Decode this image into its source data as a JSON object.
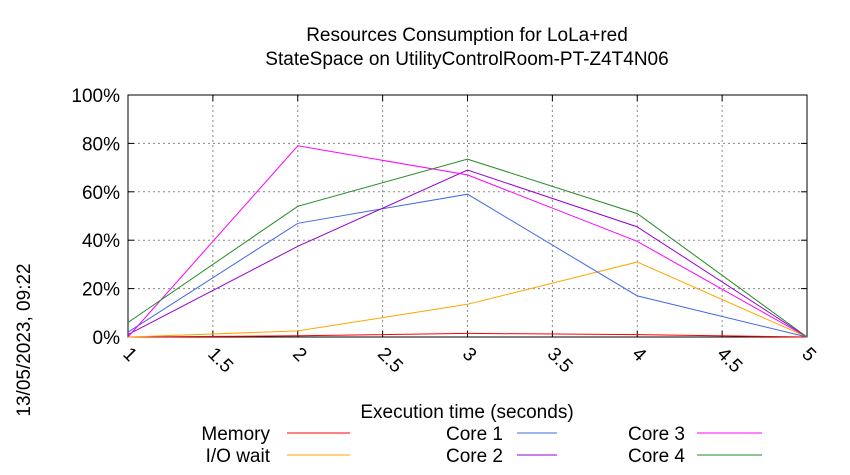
{
  "chart_data": {
    "type": "line",
    "title_line1": "Resources Consumption for LoLa+red",
    "title_line2": "StateSpace on UtilityControlRoom-PT-Z4T4N06",
    "xlabel": "Execution time (seconds)",
    "ylabel": "",
    "side_label": "13/05/2023, 09:22",
    "xlim": [
      1,
      5
    ],
    "ylim": [
      0,
      100
    ],
    "x_ticks": [
      "1",
      "1.5",
      "2",
      "2.5",
      "3",
      "3.5",
      "4",
      "4.5",
      "5"
    ],
    "x_tick_values": [
      1,
      1.5,
      2,
      2.5,
      3,
      3.5,
      4,
      4.5,
      5
    ],
    "y_ticks": [
      "0%",
      "20%",
      "40%",
      "60%",
      "80%",
      "100%"
    ],
    "y_tick_values": [
      0,
      20,
      40,
      60,
      80,
      100
    ],
    "grid": true,
    "legend_position": "bottom",
    "x": [
      1,
      2,
      3,
      4,
      5
    ],
    "series": [
      {
        "name": "Memory",
        "color": "#ff0000",
        "values": [
          0,
          0.5,
          1.5,
          1,
          0
        ]
      },
      {
        "name": "I/O wait",
        "color": "#ffa500",
        "values": [
          0,
          2.5,
          13.5,
          31,
          0
        ]
      },
      {
        "name": "Core 1",
        "color": "#4169e1",
        "values": [
          2,
          47,
          59,
          17,
          0
        ]
      },
      {
        "name": "Core 2",
        "color": "#9400d3",
        "values": [
          1,
          37.5,
          69,
          45.5,
          0
        ]
      },
      {
        "name": "Core 3",
        "color": "#ff00ff",
        "values": [
          0,
          79,
          67,
          39.5,
          0
        ]
      },
      {
        "name": "Core 4",
        "color": "#228b22",
        "values": [
          6,
          54,
          73.5,
          51,
          0
        ]
      }
    ]
  }
}
